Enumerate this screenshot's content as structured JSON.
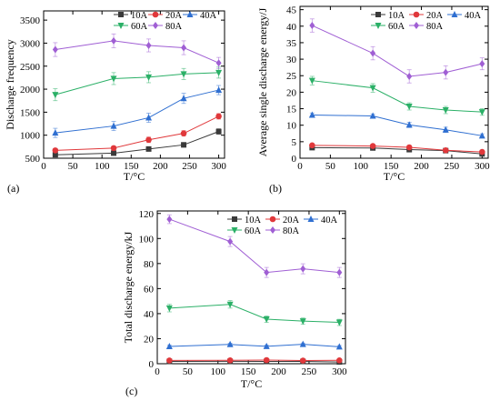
{
  "chart_data": [
    {
      "type": "line",
      "panel_label": "(a)",
      "xlabel": "T/°C",
      "ylabel": "Discharge frequency",
      "xlim": [
        0,
        310
      ],
      "ylim": [
        500,
        3700
      ],
      "x_ticks": [
        "0",
        "50",
        "100",
        "150",
        "200",
        "250",
        "300"
      ],
      "y_ticks": [
        "500",
        "1000",
        "1500",
        "2000",
        "2500",
        "3000",
        "3500"
      ],
      "legend_position": "top-right",
      "x": [
        20,
        120,
        180,
        240,
        300
      ],
      "series": [
        {
          "name": "10A",
          "values": [
            575,
            610,
            700,
            790,
            1080
          ],
          "error": [
            40,
            40,
            40,
            50,
            60
          ]
        },
        {
          "name": "20A",
          "values": [
            670,
            720,
            900,
            1040,
            1410
          ],
          "error": [
            40,
            40,
            60,
            60,
            60
          ]
        },
        {
          "name": "40A",
          "values": [
            1050,
            1200,
            1380,
            1800,
            1980
          ],
          "error": [
            100,
            100,
            100,
            110,
            100
          ]
        },
        {
          "name": "60A",
          "values": [
            1880,
            2230,
            2260,
            2330,
            2360
          ],
          "error": [
            130,
            130,
            120,
            120,
            120
          ]
        },
        {
          "name": "80A",
          "values": [
            2860,
            3050,
            2950,
            2900,
            2570
          ],
          "error": [
            150,
            150,
            140,
            150,
            120
          ]
        }
      ]
    },
    {
      "type": "line",
      "panel_label": "(b)",
      "xlabel": "T/°C",
      "ylabel": "Average single discharge energy/J",
      "xlim": [
        0,
        310
      ],
      "ylim": [
        0,
        46
      ],
      "x_ticks": [
        "0",
        "50",
        "100",
        "150",
        "200",
        "250",
        "300"
      ],
      "y_ticks": [
        "0",
        "5",
        "10",
        "15",
        "20",
        "25",
        "30",
        "35",
        "40",
        "45"
      ],
      "legend_position": "top-right",
      "x": [
        20,
        120,
        180,
        240,
        300
      ],
      "series": [
        {
          "name": "10A",
          "values": [
            3.2,
            3.1,
            2.6,
            2.3,
            1.3
          ],
          "error": [
            0.4,
            0.4,
            0.4,
            0.3,
            0.3
          ]
        },
        {
          "name": "20A",
          "values": [
            3.9,
            3.7,
            3.3,
            2.4,
            1.9
          ],
          "error": [
            0.4,
            0.4,
            0.4,
            0.3,
            0.3
          ]
        },
        {
          "name": "40A",
          "values": [
            13.1,
            12.8,
            10.1,
            8.6,
            6.8
          ],
          "error": [
            0.6,
            0.6,
            0.8,
            0.8,
            0.6
          ]
        },
        {
          "name": "60A",
          "values": [
            23.5,
            21.3,
            15.7,
            14.6,
            14.0
          ],
          "error": [
            1.3,
            1.3,
            1.1,
            1.1,
            1.0
          ]
        },
        {
          "name": "80A",
          "values": [
            40.2,
            31.8,
            24.8,
            26.0,
            28.6
          ],
          "error": [
            2.0,
            2.0,
            2.0,
            2.0,
            1.8
          ]
        }
      ]
    },
    {
      "type": "line",
      "panel_label": "(c)",
      "xlabel": "T/°C",
      "ylabel": "Total discharge energy/kJ",
      "xlim": [
        0,
        310
      ],
      "ylim": [
        0,
        122
      ],
      "x_ticks": [
        "0",
        "50",
        "100",
        "150",
        "200",
        "250",
        "300"
      ],
      "y_ticks": [
        "0",
        "20",
        "40",
        "60",
        "80",
        "100",
        "120"
      ],
      "legend_position": "top-right",
      "x": [
        20,
        120,
        180,
        240,
        300
      ],
      "series": [
        {
          "name": "10A",
          "values": [
            1.8,
            1.9,
            1.8,
            1.8,
            1.4
          ],
          "error": [
            0.3,
            0.3,
            0.3,
            0.3,
            0.3
          ]
        },
        {
          "name": "20A",
          "values": [
            2.6,
            2.7,
            2.9,
            2.5,
            2.7
          ],
          "error": [
            0.3,
            0.3,
            0.3,
            0.3,
            0.3
          ]
        },
        {
          "name": "40A",
          "values": [
            13.8,
            15.4,
            13.9,
            15.5,
            13.5
          ],
          "error": [
            1.0,
            1.0,
            1.0,
            1.0,
            1.0
          ]
        },
        {
          "name": "60A",
          "values": [
            44.4,
            47.4,
            35.6,
            34.0,
            33.0
          ],
          "error": [
            3.0,
            3.0,
            2.5,
            2.5,
            2.5
          ]
        },
        {
          "name": "80A",
          "values": [
            115.4,
            97.6,
            72.9,
            75.8,
            72.9
          ],
          "error": [
            3.5,
            4.0,
            4.0,
            4.0,
            4.0
          ]
        }
      ]
    }
  ],
  "series_styles": [
    {
      "color": "#3a3a3a",
      "marker": "square"
    },
    {
      "color": "#e0383b",
      "marker": "circle"
    },
    {
      "color": "#2f6fd1",
      "marker": "triangle-up"
    },
    {
      "color": "#2bb067",
      "marker": "triangle-down"
    },
    {
      "color": "#a05fd4",
      "marker": "diamond"
    }
  ]
}
